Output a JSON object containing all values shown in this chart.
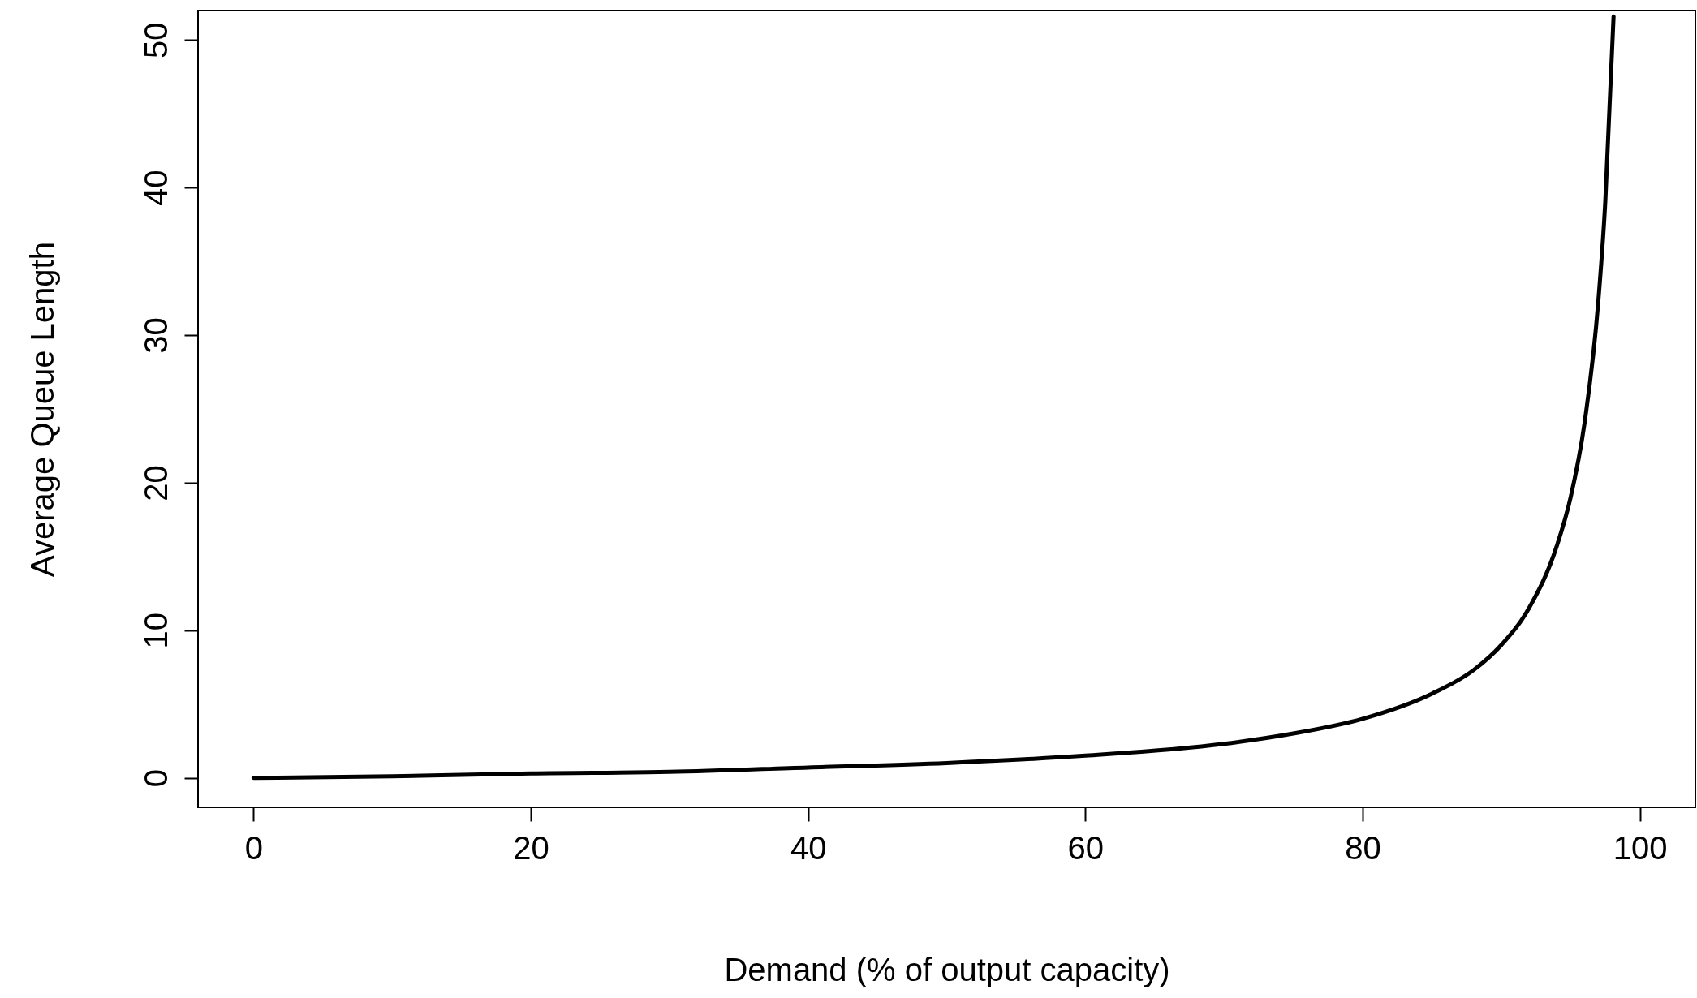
{
  "chart_data": {
    "type": "line",
    "xlabel": "Demand (% of output capacity)",
    "ylabel": "Average Queue Length",
    "x": [
      0,
      10,
      20,
      30,
      40,
      50,
      60,
      70,
      75,
      80,
      85,
      88,
      90,
      92,
      94,
      95,
      96,
      97,
      97.5,
      98.1
    ],
    "series": [
      {
        "color": "#000000",
        "values": [
          0,
          0.1,
          0.3,
          0.4,
          0.7,
          1,
          1.5,
          2.3,
          3,
          4,
          5.7,
          7.3,
          9,
          11.5,
          15.7,
          19,
          24,
          32.3,
          39,
          51.6
        ]
      }
    ],
    "xlim": [
      -4,
      104
    ],
    "xticks": [
      0,
      20,
      40,
      60,
      80,
      100
    ],
    "ylim": [
      -2,
      52
    ],
    "yticks": [
      0,
      10,
      20,
      30,
      40,
      50
    ],
    "grid": false,
    "marker": "none",
    "line_style": "solid"
  }
}
